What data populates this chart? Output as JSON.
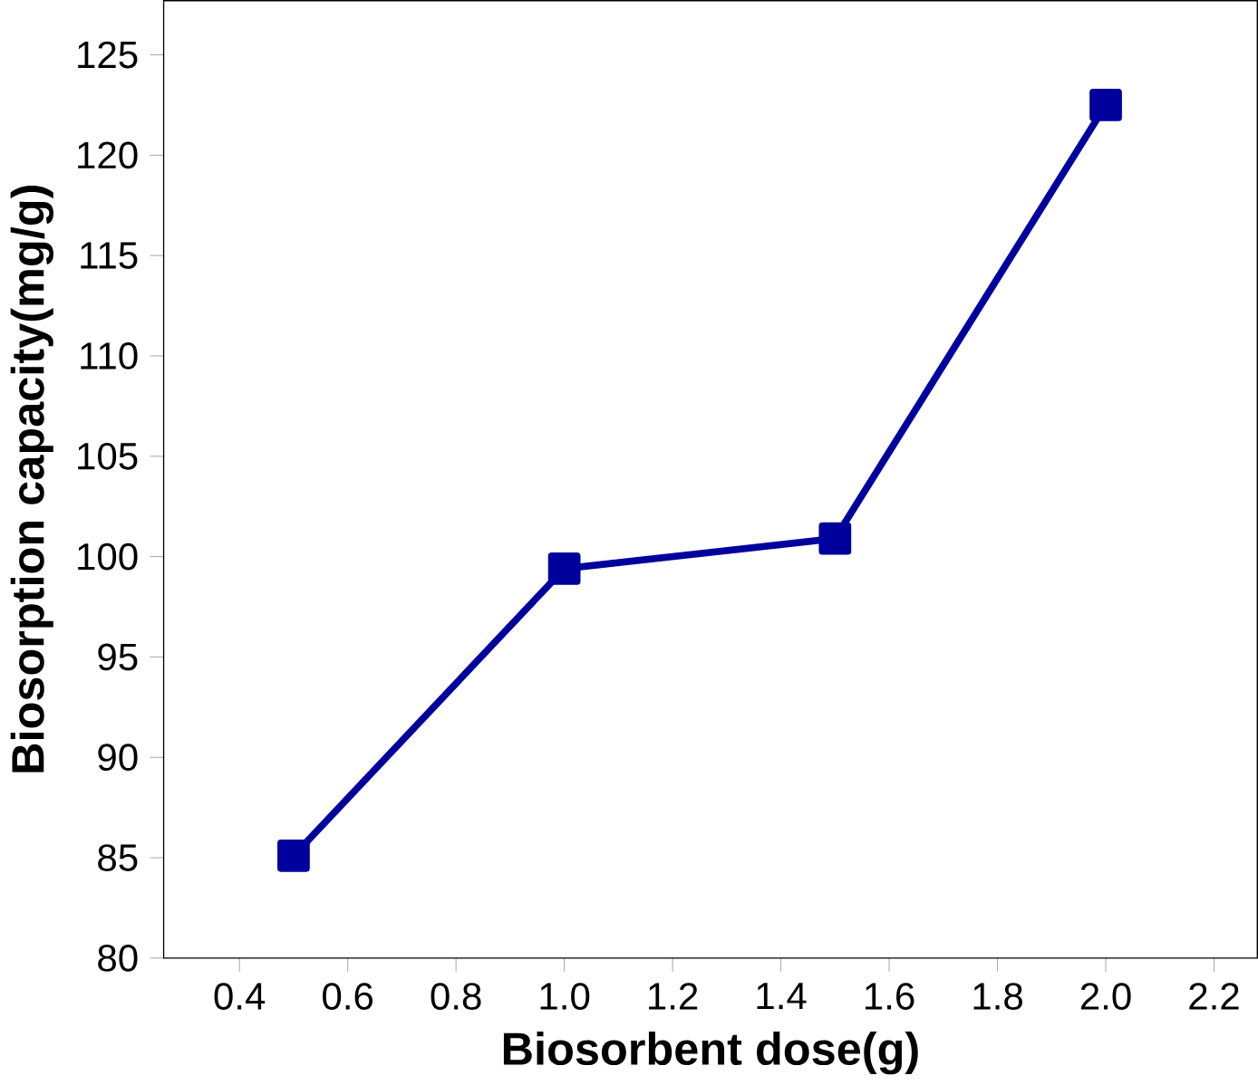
{
  "chart_data": {
    "type": "line",
    "xlabel": "Biosorbent dose(g)",
    "ylabel": "Biosorption capacity(mg/g)",
    "x": [
      0.5,
      1.0,
      1.5,
      2.0
    ],
    "series": [
      {
        "color": "#00009c",
        "values": [
          85.1,
          99.4,
          100.9,
          122.5
        ]
      }
    ],
    "xlim": [
      0.26,
      2.28
    ],
    "ylim": [
      80,
      127.7
    ],
    "xticks": [
      0.4,
      0.6,
      0.8,
      {
        "value": 1.0,
        "label": "1.0"
      },
      1.2,
      1.4,
      1.6,
      1.8,
      {
        "value": 2.0,
        "label": "2.0"
      },
      2.2
    ],
    "yticks": [
      80,
      85,
      90,
      95,
      100,
      105,
      110,
      115,
      120,
      125
    ],
    "marker": "square",
    "line_style": "solid"
  }
}
